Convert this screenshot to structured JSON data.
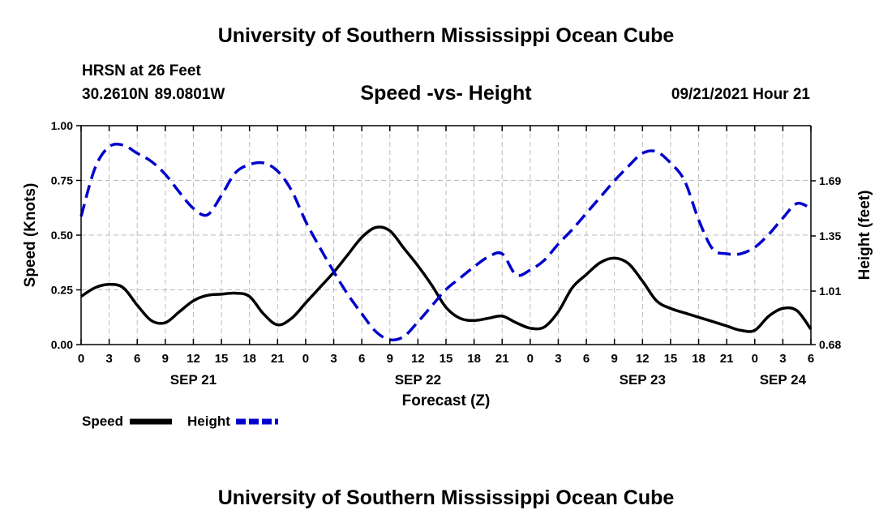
{
  "header": {
    "title": "University of Southern Mississippi Ocean Cube",
    "station": "HRSN at 26 Feet",
    "coords": "30.2610N  89.0801W",
    "subtitle": "Speed -vs- Height",
    "datetime": "09/21/2021 Hour 21"
  },
  "footer": {
    "title": "University of Southern Mississippi Ocean Cube"
  },
  "chart_data": {
    "type": "line",
    "title": "Speed -vs- Height",
    "xlabel": "Forecast (Z)",
    "ylabel": "Speed (Knots)",
    "y2label": "Height (feet)",
    "ylim": [
      0,
      1
    ],
    "y2lim": [
      0.68,
      2.03
    ],
    "xlim": [
      0,
      78
    ],
    "y_ticks": [
      0,
      0.25,
      0.5,
      0.75,
      1.0
    ],
    "y_tick_labels": [
      "0.00",
      "0.25",
      "0.50",
      "0.75",
      "1.00"
    ],
    "y2_ticks": [
      0.68,
      1.01,
      1.35,
      1.69
    ],
    "y2_tick_labels": [
      "0.68",
      "1.01",
      "1.35",
      "1.69"
    ],
    "x_ticks": [
      0,
      3,
      6,
      9,
      12,
      15,
      18,
      21,
      24,
      27,
      30,
      33,
      36,
      39,
      42,
      45,
      48,
      51,
      54,
      57,
      60,
      63,
      66,
      69,
      72,
      75,
      78
    ],
    "x_tick_labels": [
      "0",
      "3",
      "6",
      "9",
      "12",
      "15",
      "18",
      "21",
      "0",
      "3",
      "6",
      "9",
      "12",
      "15",
      "18",
      "21",
      "0",
      "3",
      "6",
      "9",
      "12",
      "15",
      "18",
      "21",
      "0",
      "3",
      "6"
    ],
    "day_labels": [
      {
        "hour": 12,
        "label": "SEP 21"
      },
      {
        "hour": 36,
        "label": "SEP 22"
      },
      {
        "hour": 60,
        "label": "SEP 23"
      },
      {
        "hour": 75,
        "label": "SEP 24"
      }
    ],
    "grid": true,
    "legend_position": "bottom-left",
    "series": [
      {
        "name": "Speed",
        "axis": "left",
        "color": "#000000",
        "dash": "solid",
        "x": [
          0,
          1.5,
          3,
          4.5,
          6,
          7.5,
          9,
          10.5,
          12,
          13.5,
          15,
          16.5,
          18,
          19.5,
          21,
          22.5,
          24,
          25.5,
          27,
          28.5,
          30,
          31.5,
          33,
          34.5,
          36,
          37.5,
          39,
          40.5,
          42,
          43.5,
          45,
          46.5,
          48,
          49.5,
          51,
          52.5,
          54,
          55.5,
          57,
          58.5,
          60,
          61.5,
          63,
          64.5,
          66,
          67.5,
          69,
          70.5,
          72,
          73.5,
          75,
          76.5,
          78
        ],
        "values": [
          0.22,
          0.26,
          0.275,
          0.26,
          0.18,
          0.11,
          0.1,
          0.15,
          0.2,
          0.225,
          0.23,
          0.235,
          0.22,
          0.14,
          0.09,
          0.12,
          0.19,
          0.26,
          0.33,
          0.41,
          0.49,
          0.535,
          0.52,
          0.44,
          0.36,
          0.27,
          0.17,
          0.12,
          0.11,
          0.12,
          0.13,
          0.1,
          0.075,
          0.08,
          0.15,
          0.26,
          0.32,
          0.375,
          0.395,
          0.37,
          0.29,
          0.2,
          0.165,
          0.145,
          0.125,
          0.105,
          0.085,
          0.065,
          0.065,
          0.13,
          0.165,
          0.155,
          0.07
        ]
      },
      {
        "name": "Height",
        "axis": "right",
        "color": "#0000cc",
        "dash": "dashed",
        "x": [
          0,
          1.5,
          3,
          4.5,
          6,
          7.5,
          9,
          10.5,
          12,
          13.5,
          15,
          16.5,
          18,
          19.5,
          21,
          22.5,
          24,
          25.5,
          27,
          28.5,
          30,
          31.5,
          33,
          34.5,
          36,
          37.5,
          39,
          40.5,
          42,
          43.5,
          45,
          46.5,
          48,
          49.5,
          51,
          52.5,
          54,
          55.5,
          57,
          58.5,
          60,
          61.5,
          63,
          64.5,
          66,
          67.5,
          69,
          70.5,
          72,
          73.5,
          75,
          76.5,
          78
        ],
        "values": [
          1.47,
          1.77,
          1.9,
          1.91,
          1.86,
          1.81,
          1.73,
          1.62,
          1.52,
          1.48,
          1.6,
          1.74,
          1.79,
          1.8,
          1.75,
          1.63,
          1.44,
          1.28,
          1.13,
          0.99,
          0.87,
          0.76,
          0.71,
          0.73,
          0.82,
          0.92,
          1.02,
          1.09,
          1.16,
          1.22,
          1.24,
          1.11,
          1.14,
          1.2,
          1.3,
          1.39,
          1.49,
          1.59,
          1.69,
          1.78,
          1.86,
          1.87,
          1.8,
          1.69,
          1.45,
          1.27,
          1.24,
          1.24,
          1.28,
          1.36,
          1.46,
          1.55,
          1.52
        ]
      }
    ]
  },
  "legend": {
    "items": [
      {
        "label": "Speed",
        "color": "#000000",
        "dash": "solid"
      },
      {
        "label": "Height",
        "color": "#0000cc",
        "dash": "dashed"
      }
    ]
  }
}
